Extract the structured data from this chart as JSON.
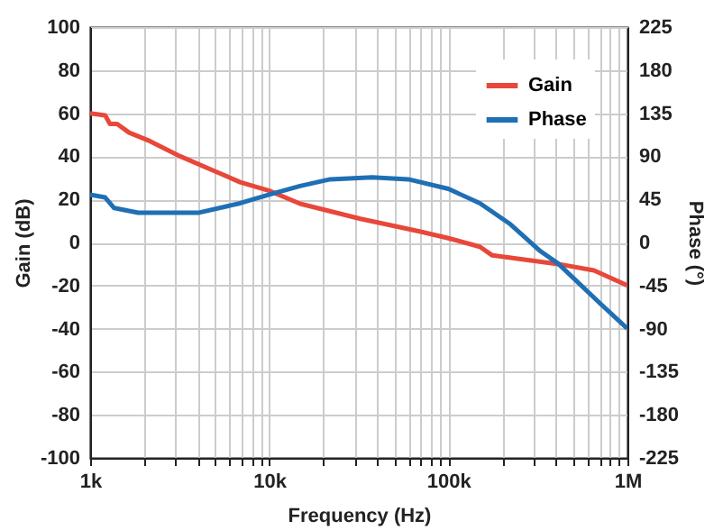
{
  "chart_data": {
    "type": "line",
    "xlabel": "Frequency (Hz)",
    "ylabel": "Gain (dB)",
    "y2label": "Phase (°)",
    "log": "x",
    "grid": true,
    "legend": "top right",
    "line_style": "solid",
    "marker": "none",
    "xlim": [
      1000,
      1000000
    ],
    "xticks": [
      {
        "value": 1000,
        "label": "1k"
      },
      {
        "value": 2000,
        "label": null
      },
      {
        "value": 3000,
        "label": null
      },
      {
        "value": 4000,
        "label": null
      },
      {
        "value": 5000,
        "label": null
      },
      {
        "value": 6000,
        "label": null
      },
      {
        "value": 7000,
        "label": null
      },
      {
        "value": 8000,
        "label": null
      },
      {
        "value": 9000,
        "label": null
      },
      {
        "value": 10000,
        "label": "10k"
      },
      {
        "value": 20000,
        "label": null
      },
      {
        "value": 30000,
        "label": null
      },
      {
        "value": 40000,
        "label": null
      },
      {
        "value": 50000,
        "label": null
      },
      {
        "value": 60000,
        "label": null
      },
      {
        "value": 70000,
        "label": null
      },
      {
        "value": 80000,
        "label": null
      },
      {
        "value": 90000,
        "label": null
      },
      {
        "value": 100000,
        "label": "100k"
      },
      {
        "value": 200000,
        "label": null
      },
      {
        "value": 300000,
        "label": null
      },
      {
        "value": 400000,
        "label": null
      },
      {
        "value": 500000,
        "label": null
      },
      {
        "value": 600000,
        "label": null
      },
      {
        "value": 700000,
        "label": null
      },
      {
        "value": 800000,
        "label": null
      },
      {
        "value": 900000,
        "label": null
      },
      {
        "value": 1000000,
        "label": "1M"
      }
    ],
    "ylim": [
      -100,
      100
    ],
    "yticks": [
      -100,
      -80,
      -60,
      -40,
      -20,
      0,
      20,
      40,
      60,
      80,
      100
    ],
    "y2lim": [
      -225,
      225
    ],
    "y2ticks": [
      -225,
      -180,
      -135,
      -90,
      -45,
      0,
      45,
      90,
      135,
      180,
      225
    ],
    "series": [
      {
        "name": "Gain",
        "color": "#e8473a",
        "x": [
          1000,
          1213,
          1290,
          1415,
          1650,
          2163,
          3183,
          4681,
          6880,
          10000,
          14860,
          32300,
          70000,
          100000,
          150000,
          176000,
          410000,
          650000,
          1000000
        ],
        "values": [
          60,
          59,
          55,
          55,
          51,
          47,
          40,
          34,
          28,
          24,
          18,
          11,
          5,
          2,
          -2,
          -6,
          -10,
          -13,
          -20
        ]
      },
      {
        "name": "Phase",
        "color": "#1f6fb4",
        "axis": "y2",
        "x": [
          1000,
          1213,
          1362,
          1854,
          3183,
          4010,
          6880,
          10000,
          14860,
          21900,
          37600,
          59800,
          100000,
          150000,
          222000,
          326000,
          410000,
          707000,
          1000000
        ],
        "values": [
          50,
          47,
          36,
          31,
          31,
          31,
          41,
          50,
          59,
          66,
          68,
          66,
          56,
          41,
          19,
          -9,
          -22,
          -64,
          -90
        ]
      }
    ]
  }
}
